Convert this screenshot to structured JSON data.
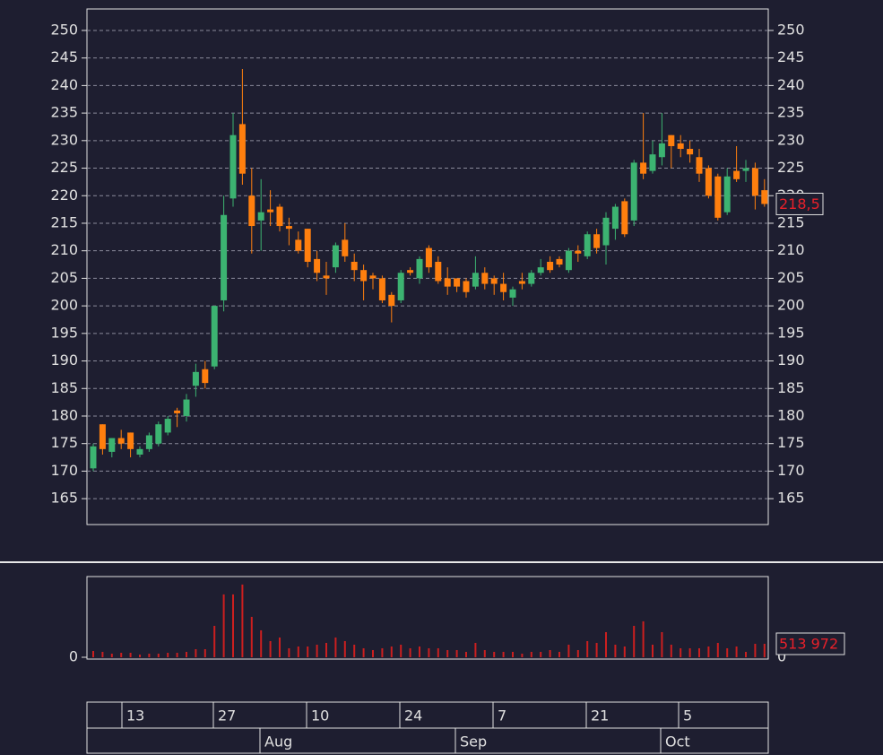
{
  "chart_data": [
    {
      "type": "candlestick",
      "open": [
        170.5,
        178.5,
        173.5,
        176,
        177,
        173,
        174,
        175,
        177,
        181,
        180,
        185.5,
        188.5,
        189,
        201,
        219.5,
        233,
        220,
        215.5,
        217.5,
        218,
        214.5,
        212,
        214,
        208.5,
        205.5,
        207,
        212,
        208,
        206.5,
        205.5,
        205,
        202,
        201,
        206.5,
        205,
        210.5,
        208,
        205,
        205,
        204.5,
        203.5,
        206,
        205,
        204,
        201.5,
        204.5,
        204,
        206,
        208,
        208.5,
        206.5,
        210,
        209,
        213,
        211,
        214,
        219,
        215.5,
        226,
        224.5,
        227,
        231,
        229.5,
        228.5,
        227,
        225,
        223.5,
        217,
        224.5,
        224.5,
        225,
        221
      ],
      "high": [
        175,
        178.5,
        176,
        177.5,
        177,
        174.5,
        177,
        179,
        180,
        181.5,
        184,
        189.5,
        190,
        200,
        220,
        235,
        243,
        225,
        223,
        221,
        218.5,
        216,
        213.5,
        214,
        210,
        208,
        211.5,
        215,
        209.5,
        207.5,
        206,
        205.5,
        202.5,
        206.5,
        207,
        209,
        211,
        209,
        207,
        205,
        205,
        209,
        207,
        205.5,
        206,
        203.5,
        206,
        206.5,
        208.5,
        209,
        209,
        210.5,
        211,
        213.5,
        214,
        217,
        218.5,
        219.5,
        226.5,
        235,
        230,
        235,
        231,
        231,
        230,
        228.5,
        225.5,
        224,
        225,
        229,
        226.5,
        226,
        223
      ],
      "low": [
        170,
        173,
        172.5,
        174,
        172.5,
        172.5,
        173.5,
        174.5,
        176.5,
        178,
        179,
        183.5,
        185,
        188.5,
        199,
        218,
        222,
        209.5,
        210,
        214.5,
        213.5,
        211,
        209.5,
        207,
        204.5,
        202,
        206,
        208,
        204.5,
        201,
        203,
        200.5,
        197,
        200.5,
        205.5,
        204,
        206,
        204,
        202,
        202.5,
        201.5,
        203,
        203,
        202,
        201,
        200,
        203,
        203.5,
        205.5,
        206,
        207,
        206,
        208,
        208.5,
        209.5,
        207.5,
        212,
        212.5,
        214.5,
        223,
        224,
        225.5,
        225,
        227,
        226,
        222.5,
        219.5,
        215.5,
        216.5,
        222.5,
        222.5,
        217.5,
        218
      ],
      "close": [
        174.5,
        174,
        176,
        175,
        174,
        174,
        176.5,
        178.5,
        179.5,
        180.5,
        183,
        188,
        186,
        200,
        216.5,
        231,
        224,
        214.5,
        217,
        217,
        214.5,
        214,
        210,
        208,
        206,
        205,
        211,
        209,
        206.5,
        204.5,
        205,
        201,
        200,
        206,
        206,
        208.5,
        207,
        204.5,
        203.5,
        203.5,
        202.5,
        206,
        204,
        204,
        202.5,
        203,
        204,
        206,
        207,
        206.5,
        207.5,
        210,
        209.5,
        213,
        210.5,
        216,
        218,
        213,
        226,
        224,
        227.5,
        229.5,
        229,
        228.5,
        227.5,
        224,
        220,
        216,
        223.5,
        223,
        225,
        220,
        218.5
      ],
      "up_color": "#3cb371",
      "down_color": "#ff7f0e",
      "last_price": {
        "value": 218.5,
        "label": "218,5"
      },
      "ylim": [
        160.3,
        253.9
      ],
      "yticks": [
        165,
        170,
        175,
        180,
        185,
        190,
        195,
        200,
        205,
        210,
        215,
        220,
        225,
        230,
        235,
        240,
        245,
        250
      ],
      "grid": true
    },
    {
      "type": "bar",
      "values": [
        240000,
        206000,
        137000,
        171000,
        171000,
        103000,
        137000,
        137000,
        171000,
        171000,
        206000,
        308000,
        308000,
        1199000,
        2399000,
        2399000,
        2775000,
        1542000,
        1028000,
        617000,
        754000,
        343000,
        411000,
        411000,
        480000,
        548000,
        754000,
        617000,
        480000,
        343000,
        274000,
        343000,
        411000,
        480000,
        343000,
        411000,
        343000,
        343000,
        274000,
        274000,
        206000,
        548000,
        274000,
        206000,
        206000,
        206000,
        137000,
        206000,
        206000,
        274000,
        206000,
        480000,
        274000,
        617000,
        548000,
        959000,
        480000,
        411000,
        1199000,
        1371000,
        480000,
        959000,
        480000,
        343000,
        343000,
        343000,
        411000,
        548000,
        343000,
        411000,
        206000,
        514000,
        513972
      ],
      "color": "#cc1f1f",
      "last_volume": {
        "value": 513972,
        "label": "513 972"
      },
      "ylim": [
        0,
        3080000
      ],
      "yticks": [
        0
      ]
    }
  ],
  "date_axis": {
    "days": [
      "13",
      "27",
      "10",
      "24",
      "7",
      "21",
      "5"
    ],
    "months": [
      "Aug",
      "Sep",
      "Oct"
    ]
  }
}
